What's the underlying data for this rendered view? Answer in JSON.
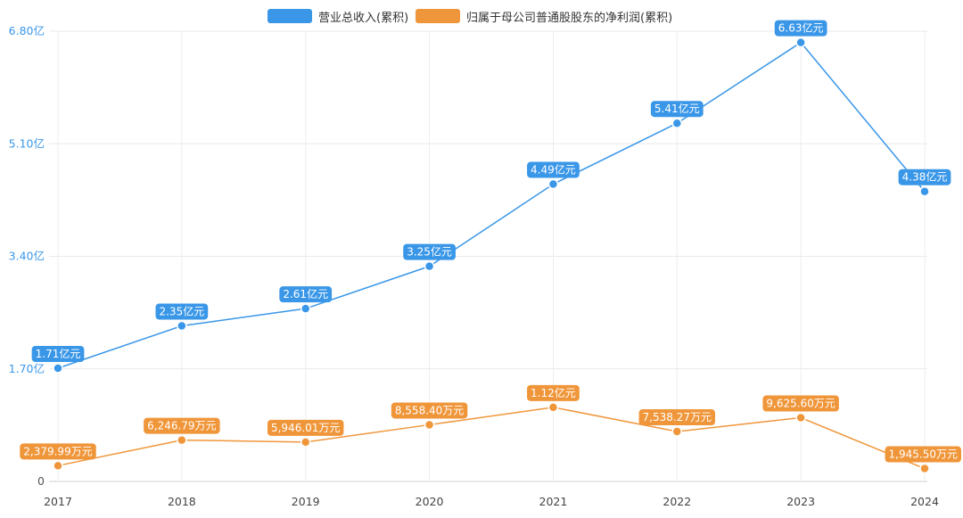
{
  "chart_data": {
    "type": "line",
    "categories": [
      "2017",
      "2018",
      "2019",
      "2020",
      "2021",
      "2022",
      "2023",
      "2024"
    ],
    "yunit": "亿",
    "yticks": [
      0,
      1.7,
      3.4,
      5.1,
      6.8
    ],
    "ytick_labels": [
      "0",
      "1.70亿",
      "3.40亿",
      "5.10亿",
      "6.80亿"
    ],
    "ylim": [
      0,
      6.8
    ],
    "grid": true,
    "legend_position": "top-center",
    "series": [
      {
        "name": "营业总收入(累积)",
        "color": "#3a97e8",
        "values": [
          1.71,
          2.35,
          2.61,
          3.25,
          4.49,
          5.41,
          6.63,
          4.38
        ],
        "labels": [
          "1.71亿元",
          "2.35亿元",
          "2.61亿元",
          "3.25亿元",
          "4.49亿元",
          "5.41亿元",
          "6.63亿元",
          "4.38亿元"
        ]
      },
      {
        "name": "归属于母公司普通股股东的净利润(累积)",
        "color": "#f0963a",
        "values": [
          0.237999,
          0.624679,
          0.594601,
          0.85584,
          1.12,
          0.753827,
          0.96256,
          0.19455
        ],
        "labels": [
          "2,379.99万元",
          "6,246.79万元",
          "5,946.01万元",
          "8,558.40万元",
          "1.12亿元",
          "7,538.27万元",
          "9,625.60万元",
          "1,945.50万元"
        ]
      }
    ]
  }
}
